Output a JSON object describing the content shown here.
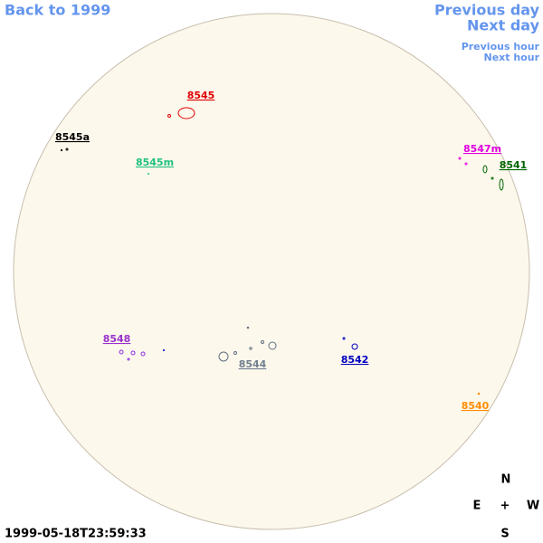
{
  "nav": {
    "back": "Back to 1999",
    "previous_day": "Previous day",
    "next_day": "Next day",
    "previous_hour": "Previous hour",
    "next_hour": "Next hour"
  },
  "regions": [
    "8545",
    "8545a",
    "8545m",
    "8547m",
    "8541",
    "8548",
    "8544",
    "8542",
    "8540"
  ],
  "compass": {
    "north": "N",
    "east": "E",
    "center": "+",
    "west": "W",
    "south": "S"
  },
  "timestamp": "1999-05-18T23:59:33"
}
